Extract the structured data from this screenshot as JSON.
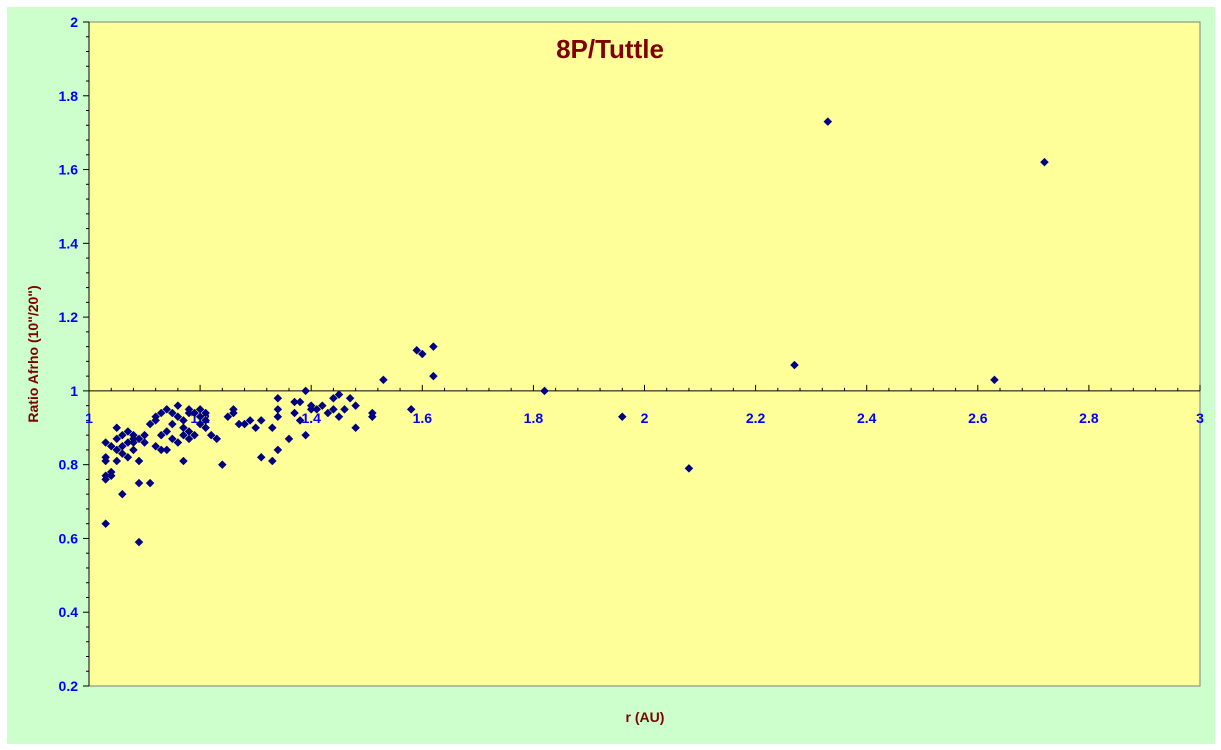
{
  "chart_data": {
    "type": "scatter",
    "title": "8P/Tuttle",
    "xlabel": "r (AU)",
    "ylabel": "Ratio Afrho (10\"/20\")",
    "xlim": [
      1,
      3
    ],
    "ylim": [
      0.2,
      2
    ],
    "x_ticks": [
      "1",
      "1.2",
      "1.4",
      "1.6",
      "1.8",
      "2",
      "2.2",
      "2.4",
      "2.6",
      "2.8",
      "3"
    ],
    "y_ticks": [
      "0.2",
      "0.4",
      "0.6",
      "0.8",
      "1",
      "1.2",
      "1.4",
      "1.6",
      "1.8",
      "2"
    ],
    "x_axis_crosses_at": 1,
    "grid": false,
    "colors": {
      "plot_bg": "#ffff99",
      "outer_bg": "#ccffcc",
      "marker": "#000080",
      "title": "#800000",
      "tick_labels": "#0000ff"
    },
    "series": [
      {
        "marker": "diamond",
        "points": [
          [
            1.03,
            0.64
          ],
          [
            1.03,
            0.77
          ],
          [
            1.03,
            0.76
          ],
          [
            1.03,
            0.81
          ],
          [
            1.03,
            0.82
          ],
          [
            1.03,
            0.86
          ],
          [
            1.04,
            0.85
          ],
          [
            1.04,
            0.78
          ],
          [
            1.04,
            0.77
          ],
          [
            1.05,
            0.84
          ],
          [
            1.05,
            0.87
          ],
          [
            1.05,
            0.9
          ],
          [
            1.05,
            0.81
          ],
          [
            1.06,
            0.85
          ],
          [
            1.06,
            0.88
          ],
          [
            1.06,
            0.72
          ],
          [
            1.06,
            0.83
          ],
          [
            1.07,
            0.82
          ],
          [
            1.07,
            0.86
          ],
          [
            1.07,
            0.89
          ],
          [
            1.08,
            0.84
          ],
          [
            1.08,
            0.87
          ],
          [
            1.08,
            0.88
          ],
          [
            1.08,
            0.86
          ],
          [
            1.09,
            0.59
          ],
          [
            1.09,
            0.75
          ],
          [
            1.09,
            0.81
          ],
          [
            1.09,
            0.87
          ],
          [
            1.1,
            0.86
          ],
          [
            1.1,
            0.88
          ],
          [
            1.11,
            0.75
          ],
          [
            1.11,
            0.91
          ],
          [
            1.12,
            0.92
          ],
          [
            1.12,
            0.93
          ],
          [
            1.12,
            0.85
          ],
          [
            1.13,
            0.84
          ],
          [
            1.13,
            0.88
          ],
          [
            1.13,
            0.94
          ],
          [
            1.14,
            0.95
          ],
          [
            1.14,
            0.84
          ],
          [
            1.14,
            0.89
          ],
          [
            1.15,
            0.91
          ],
          [
            1.15,
            0.94
          ],
          [
            1.15,
            0.87
          ],
          [
            1.16,
            0.96
          ],
          [
            1.16,
            0.93
          ],
          [
            1.16,
            0.86
          ],
          [
            1.17,
            0.81
          ],
          [
            1.17,
            0.9
          ],
          [
            1.17,
            0.88
          ],
          [
            1.17,
            0.92
          ],
          [
            1.18,
            0.95
          ],
          [
            1.18,
            0.94
          ],
          [
            1.18,
            0.87
          ],
          [
            1.18,
            0.89
          ],
          [
            1.19,
            0.88
          ],
          [
            1.19,
            0.94
          ],
          [
            1.2,
            0.91
          ],
          [
            1.2,
            0.95
          ],
          [
            1.2,
            0.93
          ],
          [
            1.21,
            0.94
          ],
          [
            1.21,
            0.9
          ],
          [
            1.21,
            0.92
          ],
          [
            1.22,
            0.88
          ],
          [
            1.23,
            0.87
          ],
          [
            1.24,
            0.8
          ],
          [
            1.25,
            0.93
          ],
          [
            1.26,
            0.94
          ],
          [
            1.26,
            0.95
          ],
          [
            1.27,
            0.91
          ],
          [
            1.28,
            0.91
          ],
          [
            1.29,
            0.92
          ],
          [
            1.3,
            0.9
          ],
          [
            1.31,
            0.82
          ],
          [
            1.31,
            0.92
          ],
          [
            1.33,
            0.81
          ],
          [
            1.33,
            0.9
          ],
          [
            1.34,
            0.84
          ],
          [
            1.34,
            0.93
          ],
          [
            1.34,
            0.95
          ],
          [
            1.34,
            0.98
          ],
          [
            1.36,
            0.87
          ],
          [
            1.37,
            0.94
          ],
          [
            1.37,
            0.97
          ],
          [
            1.38,
            0.92
          ],
          [
            1.38,
            0.97
          ],
          [
            1.39,
            1.0
          ],
          [
            1.39,
            0.88
          ],
          [
            1.4,
            0.95
          ],
          [
            1.4,
            0.96
          ],
          [
            1.41,
            0.95
          ],
          [
            1.42,
            0.96
          ],
          [
            1.43,
            0.94
          ],
          [
            1.44,
            0.98
          ],
          [
            1.44,
            0.95
          ],
          [
            1.45,
            0.93
          ],
          [
            1.45,
            0.99
          ],
          [
            1.46,
            0.95
          ],
          [
            1.47,
            0.98
          ],
          [
            1.48,
            0.9
          ],
          [
            1.48,
            0.96
          ],
          [
            1.51,
            0.93
          ],
          [
            1.51,
            0.94
          ],
          [
            1.53,
            1.03
          ],
          [
            1.58,
            0.95
          ],
          [
            1.59,
            1.11
          ],
          [
            1.6,
            1.1
          ],
          [
            1.62,
            1.12
          ],
          [
            1.62,
            1.04
          ],
          [
            1.82,
            1.0
          ],
          [
            1.96,
            0.93
          ],
          [
            2.08,
            0.79
          ],
          [
            2.27,
            1.07
          ],
          [
            2.33,
            1.73
          ],
          [
            2.63,
            1.03
          ],
          [
            2.72,
            1.62
          ]
        ]
      }
    ]
  }
}
